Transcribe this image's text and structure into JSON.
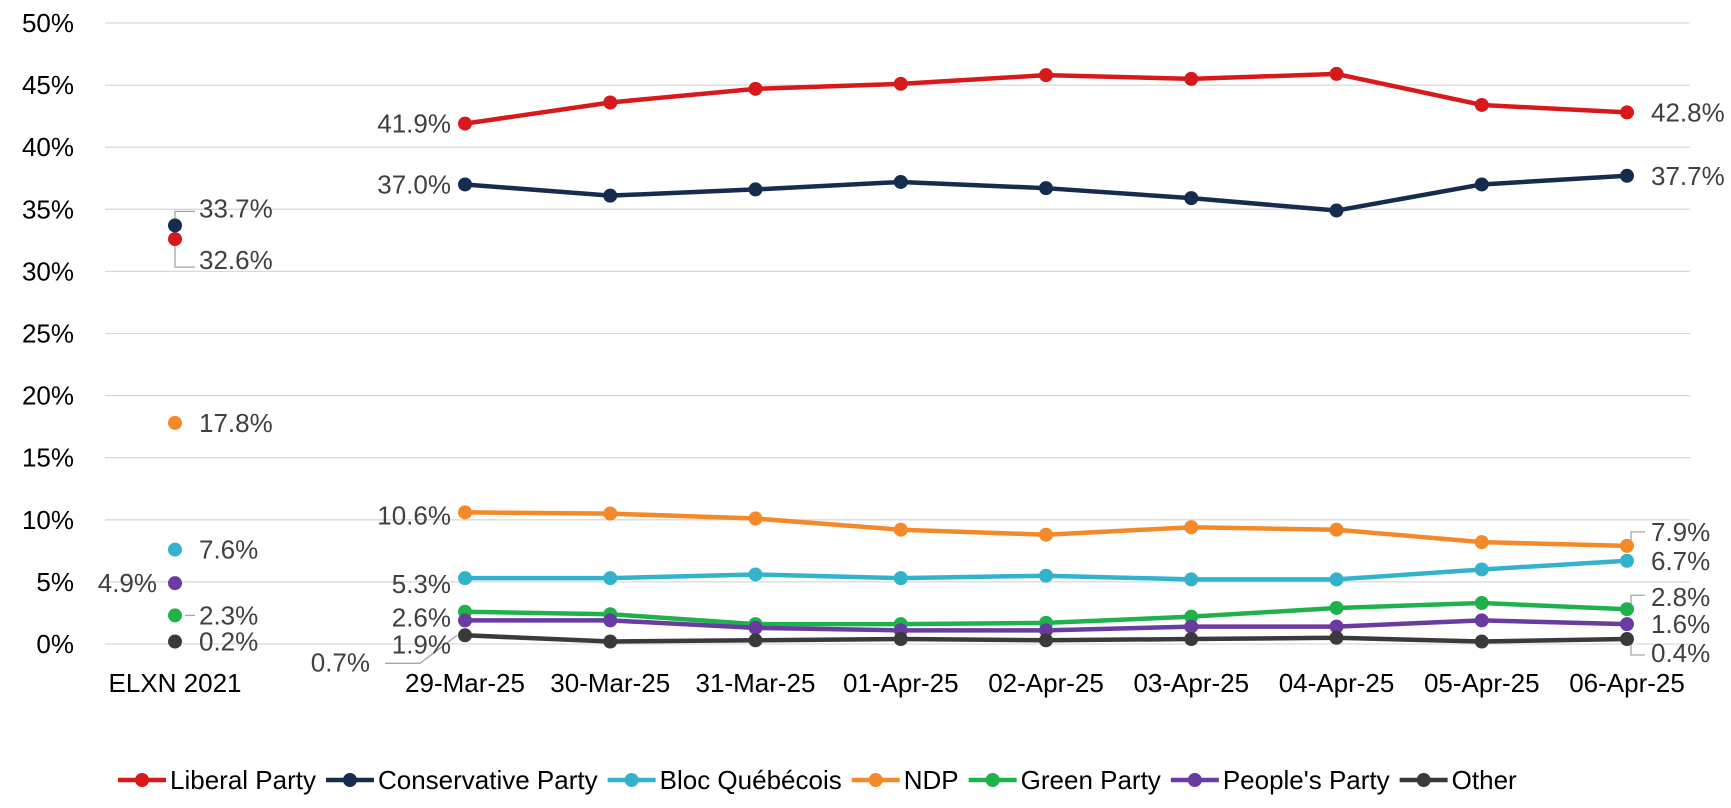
{
  "chart_data": {
    "type": "line",
    "title": "",
    "xlabel": "",
    "ylabel": "",
    "ylim": [
      0,
      50
    ],
    "y_ticks": [
      "0%",
      "5%",
      "10%",
      "15%",
      "20%",
      "25%",
      "30%",
      "35%",
      "40%",
      "45%",
      "50%"
    ],
    "grid": true,
    "legend_position": "bottom",
    "baseline_category": "ELXN 2021",
    "categories": [
      "29-Mar-25",
      "30-Mar-25",
      "31-Mar-25",
      "01-Apr-25",
      "02-Apr-25",
      "03-Apr-25",
      "04-Apr-25",
      "05-Apr-25",
      "06-Apr-25"
    ],
    "series": [
      {
        "name": "Liberal Party",
        "color": "#D7191C",
        "baseline": 32.6,
        "baseline_label": "32.6%",
        "values": [
          41.9,
          43.6,
          44.7,
          45.1,
          45.8,
          45.5,
          45.9,
          43.4,
          42.8
        ],
        "first_label": "41.9%",
        "last_label": "42.8%"
      },
      {
        "name": "Conservative Party",
        "color": "#152C4F",
        "baseline": 33.7,
        "baseline_label": "33.7%",
        "values": [
          37.0,
          36.1,
          36.6,
          37.2,
          36.7,
          35.9,
          34.9,
          37.0,
          37.7
        ],
        "first_label": "37.0%",
        "last_label": "37.7%"
      },
      {
        "name": "Bloc Québécois",
        "color": "#33B2CC",
        "baseline": 7.6,
        "baseline_label": "7.6%",
        "values": [
          5.3,
          5.3,
          5.6,
          5.3,
          5.5,
          5.2,
          5.2,
          6.0,
          6.7
        ],
        "first_label": "5.3%",
        "last_label": "6.7%"
      },
      {
        "name": "NDP",
        "color": "#F4892A",
        "baseline": 17.8,
        "baseline_label": "17.8%",
        "values": [
          10.6,
          10.5,
          10.1,
          9.2,
          8.8,
          9.4,
          9.2,
          8.2,
          7.9
        ],
        "first_label": "10.6%",
        "last_label": "7.9%"
      },
      {
        "name": "Green Party",
        "color": "#1FB14A",
        "baseline": 2.3,
        "baseline_label": "2.3%",
        "values": [
          2.6,
          2.4,
          1.6,
          1.6,
          1.7,
          2.2,
          2.9,
          3.3,
          2.8
        ],
        "first_label": "2.6%",
        "last_label": "2.8%"
      },
      {
        "name": "People's Party",
        "color": "#6A3BA0",
        "baseline": 4.9,
        "baseline_label": "4.9%",
        "values": [
          1.9,
          1.9,
          1.3,
          1.1,
          1.1,
          1.4,
          1.4,
          1.9,
          1.6
        ],
        "first_label": "1.9%",
        "last_label": "1.6%"
      },
      {
        "name": "Other",
        "color": "#3A3A3A",
        "baseline": 0.2,
        "baseline_label": "0.2%",
        "values": [
          0.7,
          0.2,
          0.3,
          0.4,
          0.3,
          0.4,
          0.5,
          0.2,
          0.4
        ],
        "first_label": "0.7%",
        "last_label": "0.4%"
      }
    ]
  }
}
